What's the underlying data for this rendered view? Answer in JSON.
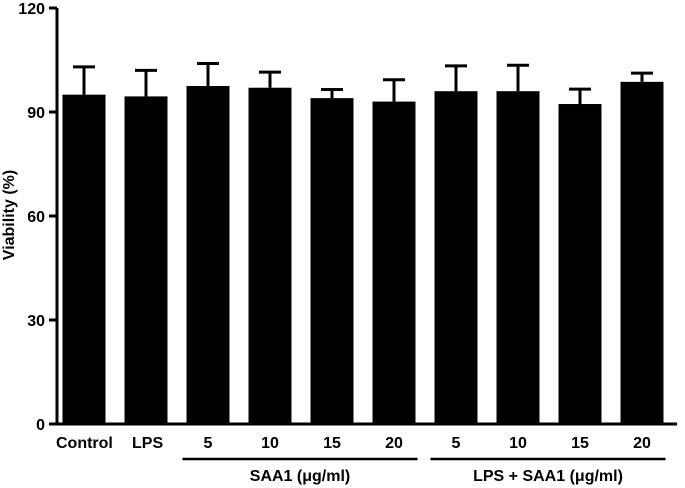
{
  "chart_data": {
    "type": "bar",
    "ylabel": "Viability (%)",
    "ylim": [
      0,
      120
    ],
    "yticks": [
      0,
      30,
      60,
      90,
      120
    ],
    "categories": [
      "Control",
      "LPS",
      "5",
      "10",
      "15",
      "20",
      "5",
      "10",
      "15",
      "20"
    ],
    "values": [
      95,
      94.5,
      97.5,
      97,
      94,
      93,
      96,
      96,
      92.3,
      98.7
    ],
    "errors": [
      8,
      7.5,
      6.5,
      4.5,
      2.5,
      6.3,
      7.3,
      7.5,
      4.3,
      2.5
    ],
    "groups": [
      {
        "label": "SAA1 (μg/ml)",
        "start": 2,
        "end": 5
      },
      {
        "label": "LPS + SAA1 (μg/ml)",
        "start": 6,
        "end": 9
      }
    ],
    "bar_color": "#000000",
    "grid": false
  }
}
